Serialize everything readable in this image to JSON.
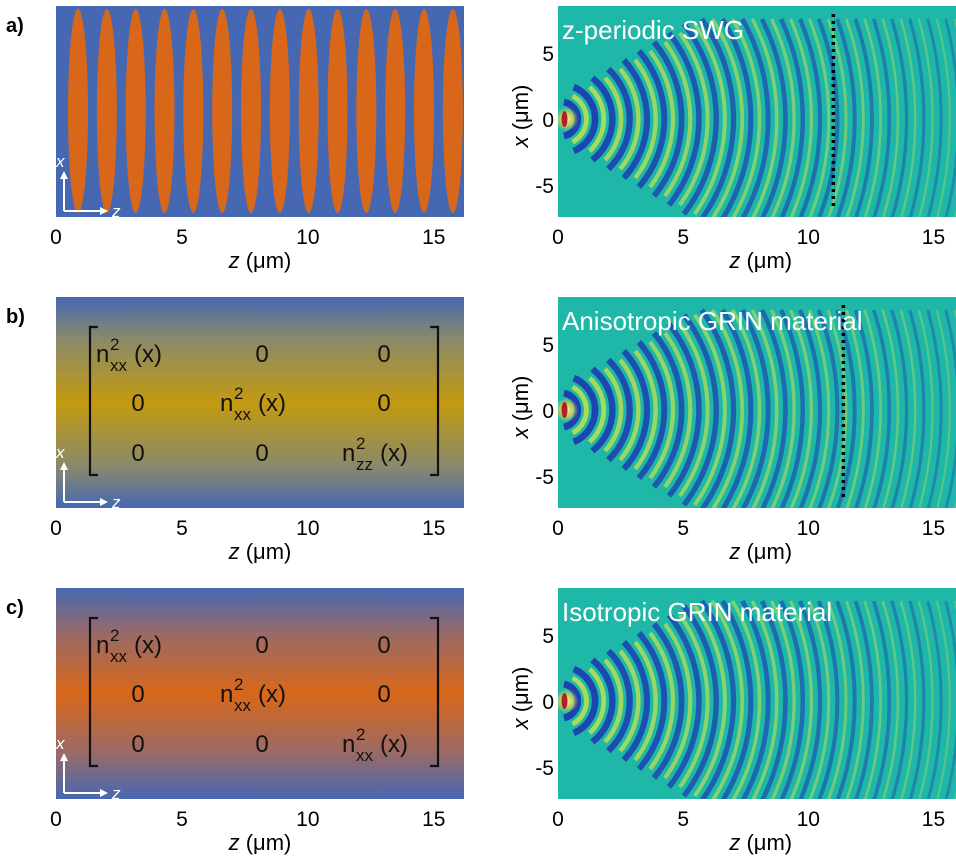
{
  "panels": [
    {
      "label": "a)",
      "left": {
        "kind": "swg"
      },
      "right": {
        "title": "z-periodic SWG",
        "dotted_z": 11.0
      }
    },
    {
      "label": "b)",
      "left": {
        "kind": "aniso",
        "matrix": [
          [
            {
              "base": "n",
              "sup": "2",
              "sub": "xx",
              "arg": "(x)"
            },
            {
              "text": "0"
            },
            {
              "text": "0"
            }
          ],
          [
            {
              "text": "0"
            },
            {
              "base": "n",
              "sup": "2",
              "sub": "xx",
              "arg": "(x)"
            },
            {
              "text": "0"
            }
          ],
          [
            {
              "text": "0"
            },
            {
              "text": "0"
            },
            {
              "base": "n",
              "sup": "2",
              "sub": "zz",
              "arg": "(x)"
            }
          ]
        ]
      },
      "right": {
        "title": "Anisotropic GRIN material",
        "dotted_z": 11.4
      }
    },
    {
      "label": "c)",
      "left": {
        "kind": "iso",
        "matrix": [
          [
            {
              "base": "n",
              "sup": "2",
              "sub": "xx",
              "arg": "(x)"
            },
            {
              "text": "0"
            },
            {
              "text": "0"
            }
          ],
          [
            {
              "text": "0"
            },
            {
              "base": "n",
              "sup": "2",
              "sub": "xx",
              "arg": "(x)"
            },
            {
              "text": "0"
            }
          ],
          [
            {
              "text": "0"
            },
            {
              "text": "0"
            },
            {
              "base": "n",
              "sup": "2",
              "sub": "xx",
              "arg": "(x)"
            }
          ]
        ]
      },
      "right": {
        "title": "Isotropic GRIN material",
        "dotted_z": null
      }
    }
  ],
  "axes": {
    "z_ticks": [
      "0",
      "5",
      "10",
      "15"
    ],
    "x_ticks": [
      "5",
      "0",
      "-5"
    ],
    "z_label": {
      "sym": "z",
      "unit": " (μm)"
    },
    "x_label": {
      "sym": "x",
      "unit": " (μm)"
    },
    "inset_x": "x",
    "inset_z": "z"
  },
  "colors": {
    "cladding": "#4668b2",
    "core_orange": "#d8671a",
    "core_gold": "#c39a10",
    "field_bg": "#1fb8a8"
  }
}
